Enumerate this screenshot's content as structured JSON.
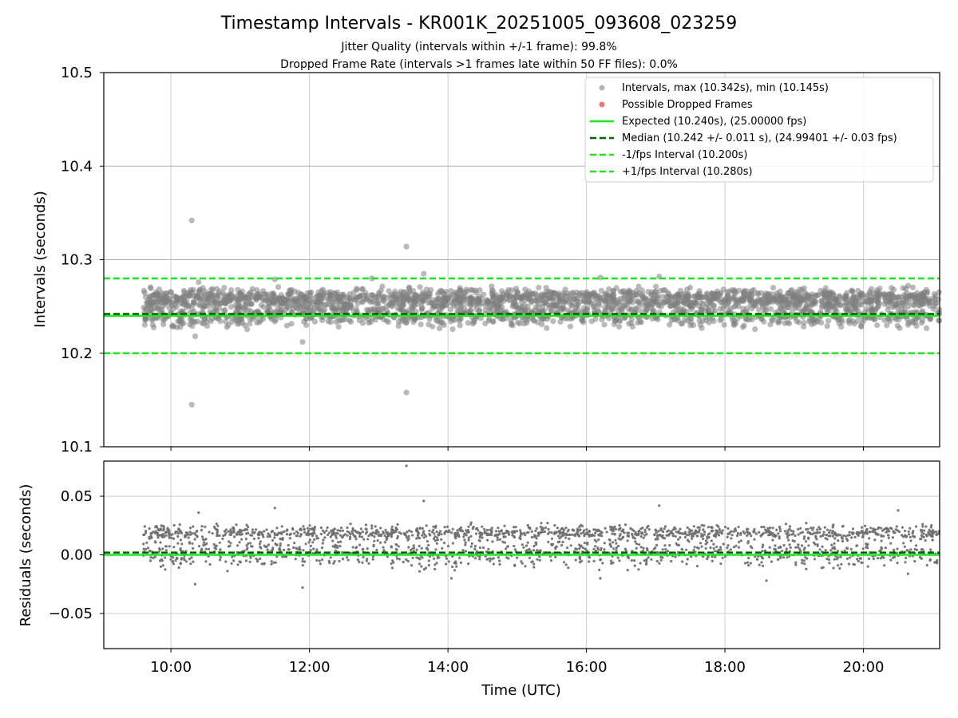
{
  "chart_data": {
    "type": "scatter",
    "title": "Timestamp Intervals - KR001K_20251005_093608_023259",
    "subtitle_lines": [
      "Jitter Quality (intervals within +/-1 frame): 99.8%",
      "Dropped Frame Rate (intervals >1 frames late within 50 FF files): 0.0%"
    ],
    "xlabel": "Time (UTC)",
    "x_unit": "hours (UTC)",
    "x_tick_values": [
      10,
      12,
      14,
      16,
      18,
      20
    ],
    "x_tick_labels": [
      "10:00",
      "12:00",
      "14:00",
      "16:00",
      "18:00",
      "20:00"
    ],
    "xlim": [
      9.03,
      21.1
    ],
    "data_span_hours": [
      9.6,
      21.1
    ],
    "top_panel": {
      "ylabel": "Intervals (seconds)",
      "ylim": [
        10.1,
        10.5
      ],
      "y_ticks": [
        10.1,
        10.2,
        10.3,
        10.4,
        10.5
      ],
      "y_tick_labels": [
        "10.1",
        "10.2",
        "10.3",
        "10.4",
        "10.5"
      ],
      "grid": true,
      "legend_position": "top-right",
      "series": [
        {
          "name": "Intervals, max (10.342s), min (10.145s)",
          "kind": "scatter",
          "color": "#808080",
          "bands": [
            {
              "center": 10.259,
              "spread": 0.005,
              "share": 0.58
            },
            {
              "center": 10.242,
              "spread": 0.007,
              "share": 0.42
            }
          ],
          "outliers": [
            [
              10.3,
              10.342
            ],
            [
              10.3,
              10.145
            ],
            [
              13.4,
              10.314
            ],
            [
              13.4,
              10.158
            ],
            [
              13.65,
              10.285
            ],
            [
              11.5,
              10.279
            ],
            [
              16.2,
              10.281
            ],
            [
              17.05,
              10.282
            ],
            [
              10.4,
              10.276
            ],
            [
              11.9,
              10.212
            ],
            [
              10.35,
              10.218
            ],
            [
              12.9,
              10.28
            ]
          ],
          "max": 10.342,
          "min": 10.145
        },
        {
          "name": "Possible Dropped Frames",
          "kind": "scatter",
          "color": "#ef5350",
          "values": []
        },
        {
          "name": "Expected (10.240s), (25.00000 fps)",
          "kind": "hline",
          "value": 10.24,
          "color": "#1ee61e",
          "style": "solid"
        },
        {
          "name": "Median (10.242 +/- 0.011 s), (24.99401 +/- 0.03 fps)",
          "kind": "hline",
          "value": 10.242,
          "color": "#006400",
          "style": "dashed"
        },
        {
          "name": "-1/fps Interval (10.200s)",
          "kind": "hline",
          "value": 10.2,
          "color": "#1ee61e",
          "style": "dashed"
        },
        {
          "name": "+1/fps Interval (10.280s)",
          "kind": "hline",
          "value": 10.28,
          "color": "#1ee61e",
          "style": "dashed"
        }
      ]
    },
    "bottom_panel": {
      "ylabel": "Residuals (seconds)",
      "ylim": [
        -0.08,
        0.08
      ],
      "y_ticks": [
        0.05,
        0.0,
        -0.05
      ],
      "y_tick_labels": [
        "0.05",
        "0.00",
        "−0.05"
      ],
      "grid": true,
      "series": [
        {
          "name": "Residuals",
          "kind": "scatter",
          "color": "#707070",
          "bands": [
            {
              "center": 0.019,
              "spread": 0.003,
              "share": 0.55
            },
            {
              "center": 0.002,
              "spread": 0.006,
              "share": 0.45
            }
          ],
          "outliers": [
            [
              13.4,
              0.076
            ],
            [
              13.65,
              0.046
            ],
            [
              17.05,
              0.042
            ],
            [
              10.4,
              0.036
            ],
            [
              11.5,
              0.04
            ],
            [
              10.35,
              -0.025
            ],
            [
              11.9,
              -0.028
            ],
            [
              14.05,
              -0.02
            ],
            [
              20.5,
              0.038
            ],
            [
              16.2,
              -0.02
            ],
            [
              18.6,
              -0.022
            ]
          ]
        },
        {
          "name": "Expected",
          "kind": "hline",
          "value": 0.0,
          "color": "#1ee61e",
          "style": "solid"
        },
        {
          "name": "Median",
          "kind": "hline",
          "value": 0.002,
          "color": "#006400",
          "style": "dashed"
        }
      ]
    }
  }
}
